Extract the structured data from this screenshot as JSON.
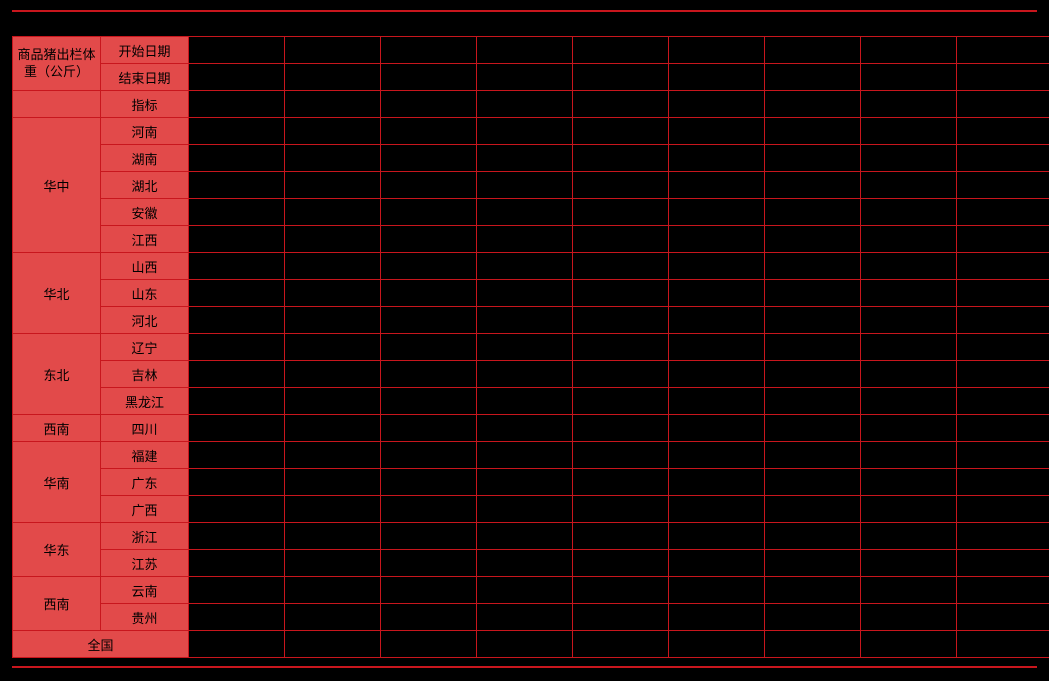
{
  "table": {
    "type": "table",
    "background_color": "#000000",
    "border_color": "#c8161d",
    "header_bg": "#e24a4a",
    "text_color": "#000000",
    "font_size": 13,
    "header_corner": "商品猪出栏体重（公斤）",
    "header_rows": [
      {
        "label": "开始日期",
        "cells": [
          "",
          "",
          "",
          "",
          "",
          "",
          "",
          "",
          ""
        ]
      },
      {
        "label": "结束日期",
        "cells": [
          "",
          "",
          "",
          "",
          "",
          "",
          "",
          "",
          ""
        ]
      }
    ],
    "indicator_row": {
      "region": "",
      "prov": "指标",
      "cells": [
        "",
        "",
        "",
        "",
        "",
        "",
        "",
        "",
        ""
      ]
    },
    "groups": [
      {
        "region": "华中",
        "provinces": [
          "河南",
          "湖南",
          "湖北",
          "安徽",
          "江西"
        ]
      },
      {
        "region": "华北",
        "provinces": [
          "山西",
          "山东",
          "河北"
        ]
      },
      {
        "region": "东北",
        "provinces": [
          "辽宁",
          "吉林",
          "黑龙江"
        ]
      },
      {
        "region": "西南",
        "provinces": [
          "四川"
        ]
      },
      {
        "region": "华南",
        "provinces": [
          "福建",
          "广东",
          "广西"
        ]
      },
      {
        "region": "华东",
        "provinces": [
          "浙江",
          "江苏"
        ]
      },
      {
        "region": "西南",
        "provinces": [
          "云南",
          "贵州"
        ]
      }
    ],
    "total_row": {
      "label": "全国",
      "cells": [
        "",
        "",
        "",
        "",
        "",
        "",
        "",
        "",
        ""
      ]
    },
    "data_col_count": 9,
    "col_widths": {
      "region": 88,
      "prov": 88,
      "data": 96
    }
  }
}
